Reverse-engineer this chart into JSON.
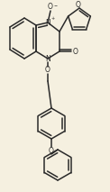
{
  "bg_color": "#f5f0e0",
  "line_color": "#2a2a2a",
  "line_width": 1.1,
  "figsize": [
    1.22,
    2.13
  ],
  "dpi": 100,
  "xlim": [
    0,
    122
  ],
  "ylim": [
    0,
    213
  ]
}
